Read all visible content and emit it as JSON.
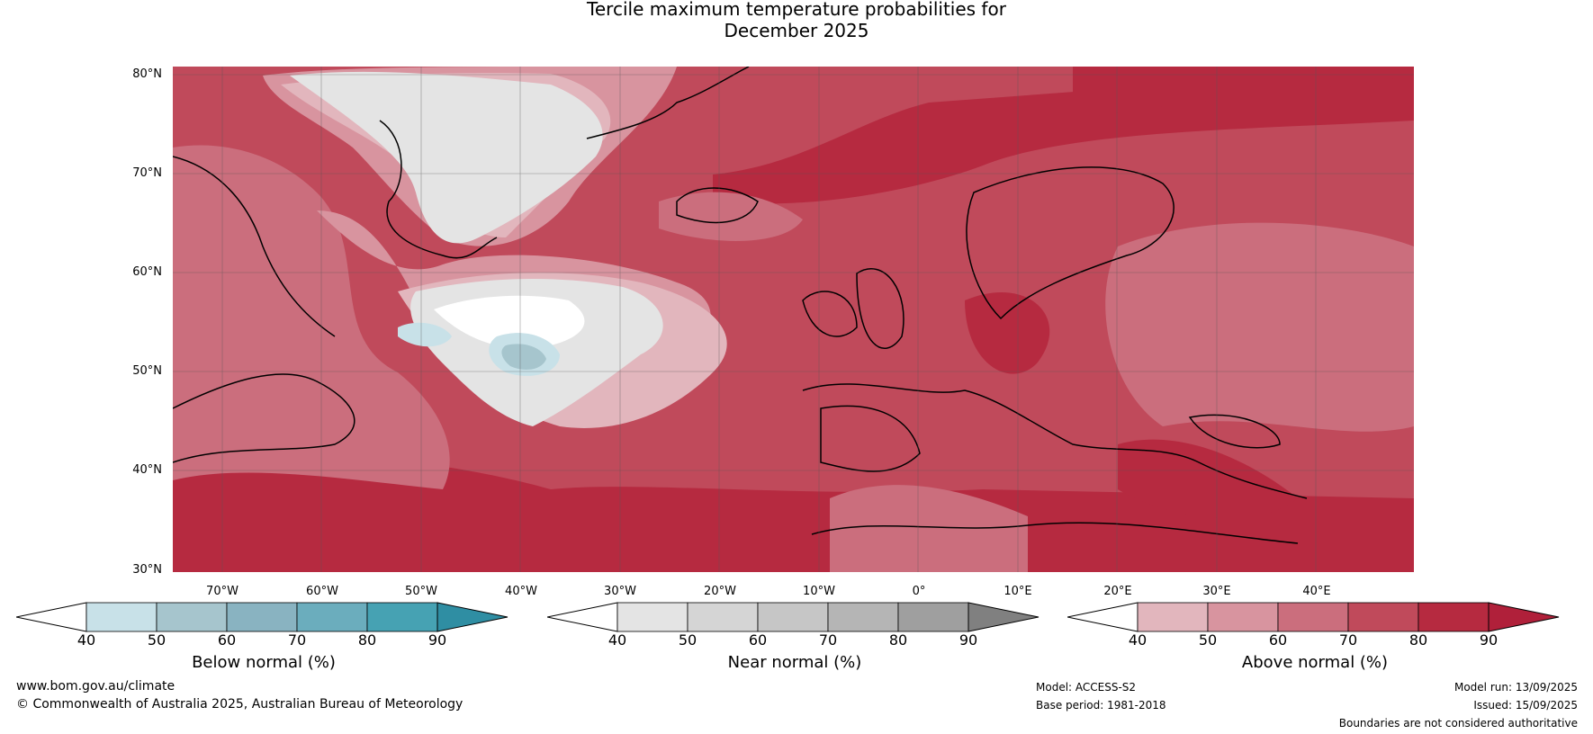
{
  "title": {
    "line1": "Tercile maximum temperature probabilities for",
    "line2": "December 2025"
  },
  "map": {
    "lat_labels": [
      "80°N",
      "70°N",
      "60°N",
      "50°N",
      "40°N",
      "30°N"
    ],
    "lon_labels": [
      "70°W",
      "60°W",
      "50°W",
      "40°W",
      "30°W",
      "20°W",
      "10°W",
      "0°",
      "10°E",
      "20°E",
      "30°E",
      "40°E"
    ],
    "colors": {
      "above": [
        "#e2b6bd",
        "#d8949f",
        "#cb6e7d",
        "#c04a5b",
        "#b62a40"
      ],
      "near": [
        "#e4e4e4",
        "#d5d5d5",
        "#c6c6c6",
        "#b5b5b5",
        "#9f9f9f"
      ],
      "below": [
        "#c8e1e8",
        "#a6c5cd",
        "#89b3c1",
        "#6badbd",
        "#46a2b3"
      ],
      "coast": "#000000",
      "border": "#808080"
    }
  },
  "colorbars": [
    {
      "label": "Below normal (%)",
      "ticks": [
        "40",
        "50",
        "60",
        "70",
        "80",
        "90"
      ],
      "low_extend": "#ffffff",
      "colors": [
        "#c8e1e8",
        "#a6c5cd",
        "#89b3c1",
        "#6badbd",
        "#46a2b3"
      ],
      "high_extend": "#2f8ea3"
    },
    {
      "label": "Near normal (%)",
      "ticks": [
        "40",
        "50",
        "60",
        "70",
        "80",
        "90"
      ],
      "low_extend": "#ffffff",
      "colors": [
        "#e4e4e4",
        "#d5d5d5",
        "#c6c6c6",
        "#b5b5b5",
        "#9f9f9f"
      ],
      "high_extend": "#808080"
    },
    {
      "label": "Above normal (%)",
      "ticks": [
        "40",
        "50",
        "60",
        "70",
        "80",
        "90"
      ],
      "low_extend": "#ffffff",
      "colors": [
        "#e2b6bd",
        "#d8949f",
        "#cb6e7d",
        "#c04a5b",
        "#b62a40"
      ],
      "high_extend": "#b0203a"
    }
  ],
  "footer": {
    "website": "www.bom.gov.au/climate",
    "copyright": "© Commonwealth of Australia 2025, Australian Bureau of Meteorology",
    "model": "Model: ACCESS-S2",
    "base_period": "Base period: 1981-2018",
    "model_run": "Model run: 13/09/2025",
    "issued": "Issued: 15/09/2025",
    "disclaimer": "Boundaries are not considered authoritative"
  }
}
